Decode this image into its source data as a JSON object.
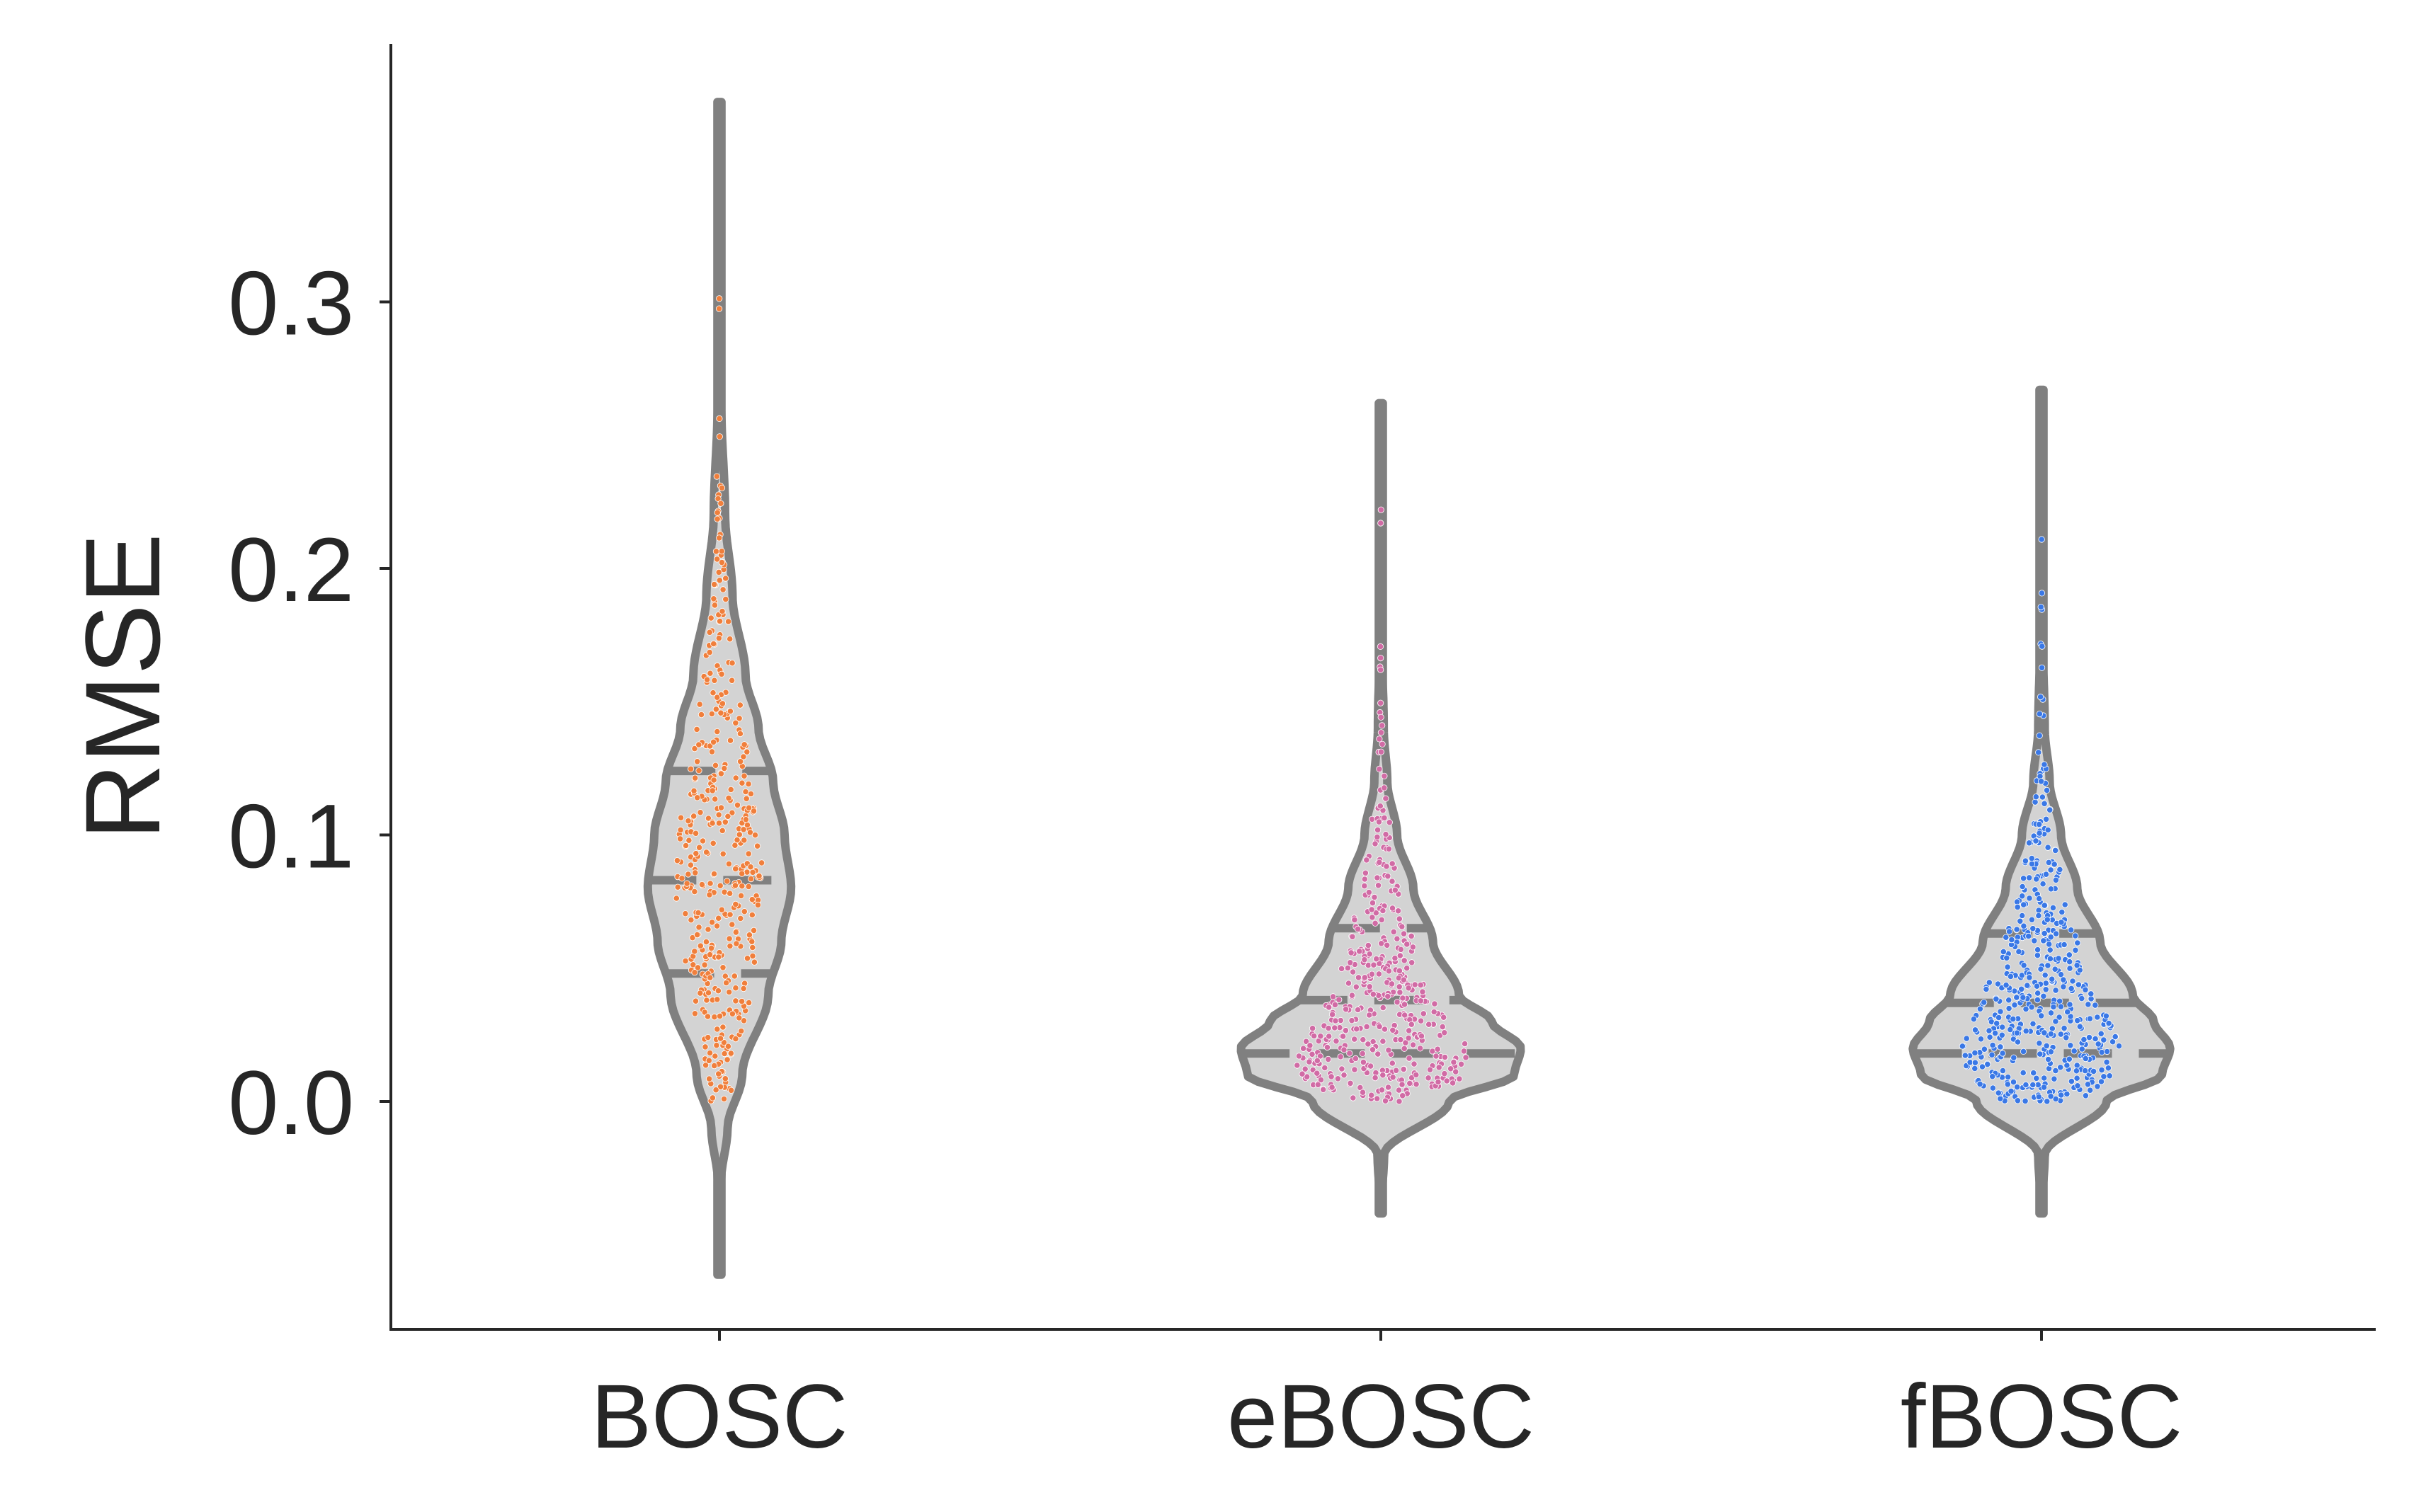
{
  "chart_data": {
    "type": "violin",
    "ylabel": "RMSE",
    "xlabel": "",
    "ylim": [
      -0.086,
      0.395
    ],
    "yticks": [
      "0.0",
      "0.1",
      "0.2",
      "0.3"
    ],
    "ytick_values": [
      0.0,
      0.1,
      0.2,
      0.3
    ],
    "grid": false,
    "categories": [
      "BOSC",
      "eBOSC",
      "fBOSC"
    ],
    "series": [
      {
        "name": "BOSC",
        "color": "#f07f3c",
        "n_points": 420,
        "min": 0.0,
        "max": 0.31,
        "q1": 0.048,
        "median": 0.083,
        "q3": 0.124,
        "density_profile": [
          [
            -0.065,
            0.0
          ],
          [
            -0.03,
            0.01
          ],
          [
            -0.01,
            0.05
          ],
          [
            0.01,
            0.14
          ],
          [
            0.04,
            0.3
          ],
          [
            0.06,
            0.38
          ],
          [
            0.08,
            0.44
          ],
          [
            0.1,
            0.4
          ],
          [
            0.12,
            0.33
          ],
          [
            0.14,
            0.24
          ],
          [
            0.16,
            0.16
          ],
          [
            0.19,
            0.08
          ],
          [
            0.22,
            0.035
          ],
          [
            0.26,
            0.012
          ],
          [
            0.3,
            0.004
          ],
          [
            0.375,
            0.0
          ]
        ]
      },
      {
        "name": "eBOSC",
        "color": "#d16ba5",
        "n_points": 440,
        "min": 0.0,
        "max": 0.225,
        "q1": 0.018,
        "median": 0.038,
        "q3": 0.065,
        "density_profile": [
          [
            -0.042,
            0.0
          ],
          [
            -0.02,
            0.02
          ],
          [
            0.0,
            0.42
          ],
          [
            0.01,
            0.82
          ],
          [
            0.02,
            0.86
          ],
          [
            0.03,
            0.68
          ],
          [
            0.04,
            0.48
          ],
          [
            0.06,
            0.32
          ],
          [
            0.08,
            0.2
          ],
          [
            0.1,
            0.1
          ],
          [
            0.12,
            0.04
          ],
          [
            0.14,
            0.018
          ],
          [
            0.17,
            0.008
          ],
          [
            0.2,
            0.004
          ],
          [
            0.262,
            0.0
          ]
        ]
      },
      {
        "name": "fBOSC",
        "color": "#3a78e6",
        "n_points": 500,
        "min": 0.0,
        "max": 0.226,
        "q1": 0.018,
        "median": 0.037,
        "q3": 0.063,
        "density_profile": [
          [
            -0.042,
            0.0
          ],
          [
            -0.02,
            0.02
          ],
          [
            0.0,
            0.4
          ],
          [
            0.01,
            0.74
          ],
          [
            0.02,
            0.79
          ],
          [
            0.03,
            0.69
          ],
          [
            0.04,
            0.56
          ],
          [
            0.06,
            0.36
          ],
          [
            0.08,
            0.22
          ],
          [
            0.1,
            0.12
          ],
          [
            0.12,
            0.05
          ],
          [
            0.14,
            0.02
          ],
          [
            0.17,
            0.01
          ],
          [
            0.2,
            0.005
          ],
          [
            0.267,
            0.0
          ]
        ]
      }
    ],
    "violin_fill": "#d3d3d3",
    "violin_edge": "#808080",
    "axis_color": "#262626"
  }
}
